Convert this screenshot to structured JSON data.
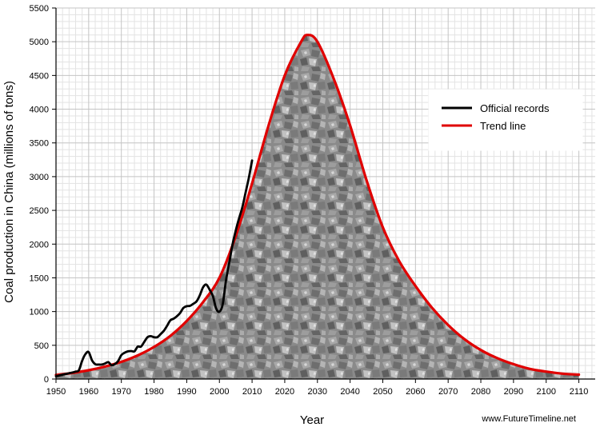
{
  "chart_data": {
    "type": "line",
    "xlabel": "Year",
    "ylabel": "Coal production in China (millions of tons)",
    "xlim": [
      1950,
      2115
    ],
    "ylim": [
      0,
      5500
    ],
    "xticks": [
      1950,
      1960,
      1970,
      1980,
      1990,
      2000,
      2010,
      2020,
      2030,
      2040,
      2050,
      2060,
      2070,
      2080,
      2090,
      2100,
      2110
    ],
    "yticks": [
      0,
      500,
      1000,
      1500,
      2000,
      2500,
      3000,
      3500,
      4000,
      4500,
      5000,
      5500
    ],
    "grid": true,
    "legend_position": "right",
    "series": [
      {
        "name": "Official records",
        "color": "#000000",
        "x": [
          1950,
          1952,
          1954,
          1956,
          1957,
          1958,
          1959,
          1960,
          1961,
          1962,
          1963,
          1964,
          1965,
          1966,
          1967,
          1968,
          1969,
          1970,
          1971,
          1972,
          1973,
          1974,
          1975,
          1976,
          1977,
          1978,
          1979,
          1980,
          1981,
          1982,
          1983,
          1984,
          1985,
          1986,
          1987,
          1988,
          1989,
          1990,
          1991,
          1992,
          1993,
          1994,
          1995,
          1996,
          1997,
          1998,
          1999,
          2000,
          2001,
          2002,
          2003,
          2004,
          2005,
          2006,
          2007,
          2008,
          2009,
          2010
        ],
        "values": [
          40,
          65,
          85,
          110,
          130,
          270,
          370,
          400,
          280,
          220,
          215,
          215,
          230,
          250,
          205,
          220,
          265,
          355,
          390,
          410,
          415,
          410,
          480,
          480,
          550,
          620,
          635,
          620,
          620,
          665,
          715,
          790,
          870,
          895,
          930,
          980,
          1055,
          1080,
          1085,
          1115,
          1150,
          1240,
          1360,
          1400,
          1325,
          1230,
          1045,
          998,
          1105,
          1455,
          1720,
          1990,
          2200,
          2380,
          2540,
          2760,
          2980,
          3240
        ]
      },
      {
        "name": "Trend line",
        "color": "#e00000",
        "x": [
          1950,
          1955,
          1960,
          1965,
          1970,
          1975,
          1980,
          1985,
          1990,
          1995,
          2000,
          2005,
          2010,
          2015,
          2020,
          2025,
          2027,
          2030,
          2035,
          2040,
          2045,
          2050,
          2055,
          2060,
          2065,
          2070,
          2075,
          2080,
          2085,
          2090,
          2095,
          2100,
          2105,
          2110
        ],
        "values": [
          60,
          90,
          130,
          185,
          255,
          350,
          475,
          640,
          860,
          1140,
          1500,
          2120,
          2900,
          3750,
          4500,
          5000,
          5100,
          5000,
          4450,
          3760,
          2950,
          2250,
          1750,
          1380,
          1060,
          800,
          590,
          430,
          310,
          220,
          150,
          110,
          80,
          65
        ]
      }
    ]
  },
  "source_label": "www.FutureTimeline.net"
}
